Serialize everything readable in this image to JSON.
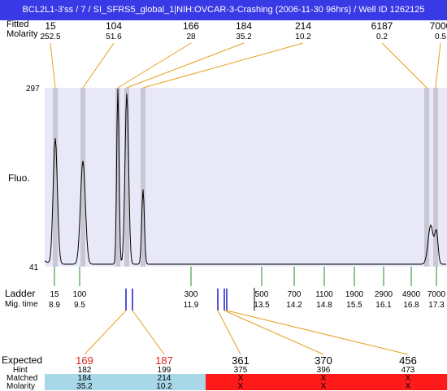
{
  "window": {
    "title": "BCL2L1-3'ss / 7 / SI_SFRS5_global_1|NIH:OVCAR-3-Crashing (2006-11-30 96hrs) / Well ID 1262125"
  },
  "header": {
    "row_label_1": "Fitted",
    "row_label_2": "Molarity",
    "peaks": [
      {
        "size": "15",
        "molarity": "252.5"
      },
      {
        "size": "104",
        "molarity": "51.6"
      },
      {
        "size": "166",
        "molarity": "28"
      },
      {
        "size": "184",
        "molarity": "35.2"
      },
      {
        "size": "214",
        "molarity": "10.2"
      },
      {
        "size": "6187",
        "molarity": "0.2"
      },
      {
        "size": "7000",
        "molarity": "0.5"
      }
    ]
  },
  "plot": {
    "y_max_label": "297",
    "y_min_label": "41",
    "y_axis_label": "Fluo."
  },
  "ladder": {
    "label": "Ladder",
    "mig_label": "Mig. time",
    "items": [
      {
        "size": "15",
        "time": "8.9"
      },
      {
        "size": "100",
        "time": "9.5"
      },
      {
        "size": "300",
        "time": "11.9"
      },
      {
        "size": "500",
        "time": "13.5"
      },
      {
        "size": "700",
        "time": "14.2"
      },
      {
        "size": "1100",
        "time": "14.8"
      },
      {
        "size": "1900",
        "time": "15.5"
      },
      {
        "size": "2900",
        "time": "16.1"
      },
      {
        "size": "4900",
        "time": "16.8"
      },
      {
        "size": "7000",
        "time": "17.3"
      }
    ]
  },
  "expected": {
    "label": "Expected",
    "hint_label": "Hint",
    "matched_label": "Matched",
    "molarity_label": "Molarity",
    "items": [
      {
        "expected": "169",
        "hint": "182",
        "matched": "184",
        "molarity": "35.2"
      },
      {
        "expected": "187",
        "hint": "199",
        "matched": "214",
        "molarity": "10.2"
      },
      {
        "expected": "361",
        "hint": "375",
        "matched": "X",
        "molarity": "X"
      },
      {
        "expected": "370",
        "hint": "396",
        "matched": "X",
        "molarity": "X"
      },
      {
        "expected": "456",
        "hint": "473",
        "matched": "X",
        "molarity": "X"
      }
    ]
  },
  "colors": {
    "title_bg": "#3939e6",
    "plot_bg": "#e8e8f8",
    "peak_band": "#c8c8d4",
    "fitted_line": "#e8a020",
    "ladder_tick": "#228822",
    "expected_marker": "#1a1acc",
    "expected_line": "#e8a020",
    "matched_ok": "#a8d8e8",
    "matched_missing": "#ff1a1a",
    "expected_missing_text": "#e02020"
  }
}
